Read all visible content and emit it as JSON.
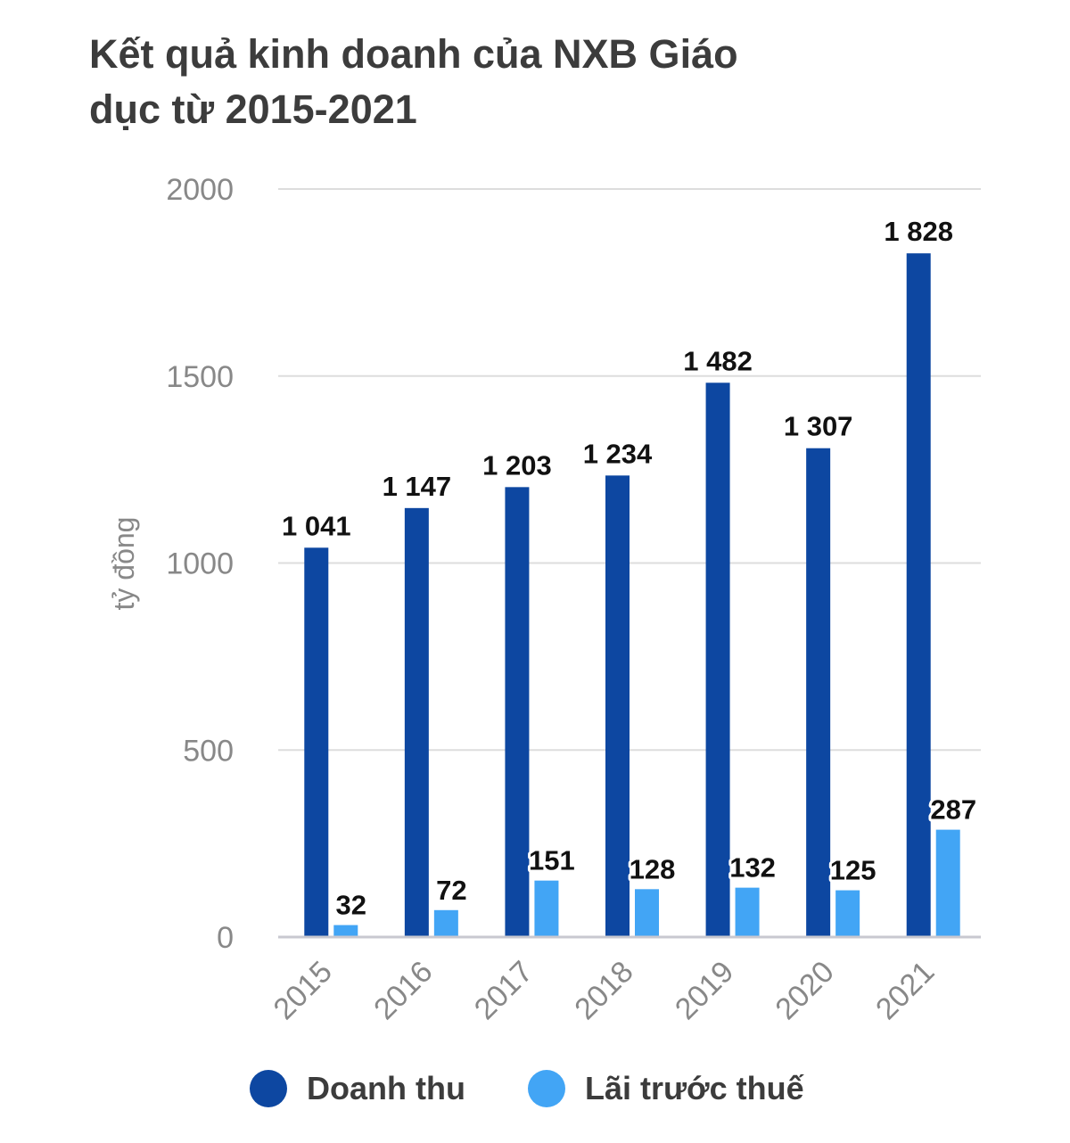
{
  "chart_data": {
    "type": "bar",
    "title": "Kết quả kinh doanh của NXB Giáo dục từ 2015-2021",
    "title_lines": [
      "Kết quả kinh doanh của NXB Giáo",
      "dục từ 2015-2021"
    ],
    "xlabel": "",
    "ylabel": "tỷ đồng",
    "ylim": [
      0,
      2000
    ],
    "yticks": [
      0,
      500,
      1000,
      1500,
      2000
    ],
    "ytick_labels": [
      "0",
      "500",
      "1000",
      "1500",
      "2000"
    ],
    "grid": true,
    "legend_position": "bottom",
    "categories": [
      "2015",
      "2016",
      "2017",
      "2018",
      "2019",
      "2020",
      "2021"
    ],
    "series": [
      {
        "name": "Doanh thu",
        "color": "#0d47a1",
        "values": [
          1041,
          1147,
          1203,
          1234,
          1482,
          1307,
          1828
        ],
        "labels": [
          "1 041",
          "1 147",
          "1 203",
          "1 234",
          "1 482",
          "1 307",
          "1 828"
        ]
      },
      {
        "name": "Lãi trước thuế",
        "color": "#42a5f5",
        "values": [
          32,
          72,
          151,
          128,
          132,
          125,
          287
        ],
        "labels": [
          "32",
          "72",
          "151",
          "128",
          "132",
          "125",
          "287"
        ]
      }
    ]
  },
  "colors": {
    "title": "#3c3c3c",
    "axis_text": "#888888",
    "grid": "#dddddd",
    "baseline": "#c8c8d0",
    "data_label": "#111111"
  }
}
